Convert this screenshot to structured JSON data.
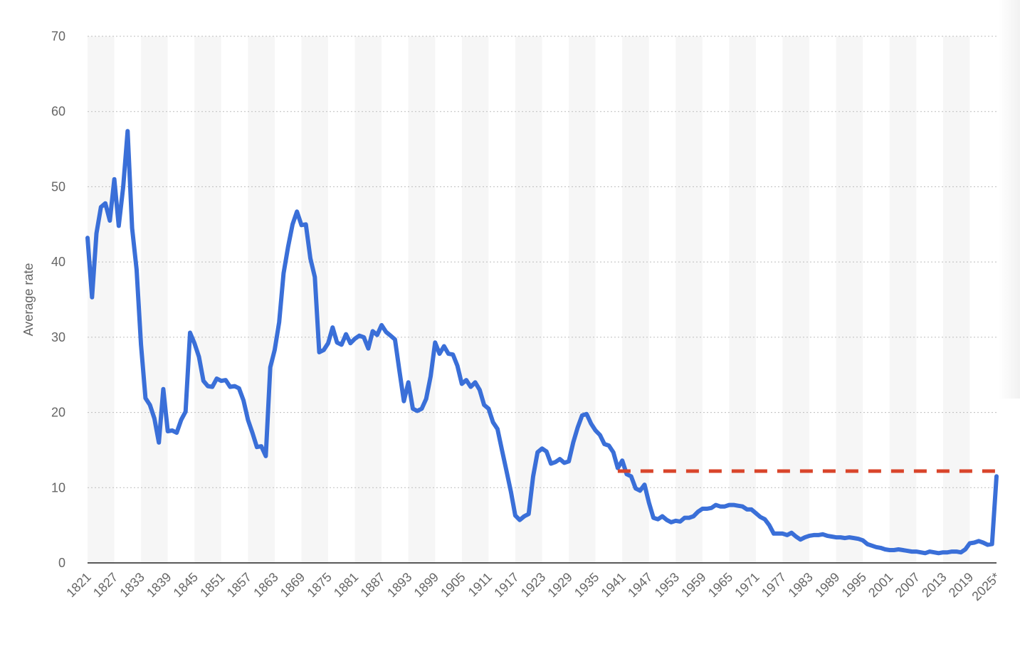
{
  "chart_data": {
    "type": "line",
    "title": "",
    "xlabel": "",
    "ylabel": "Average rate",
    "ylim": [
      0,
      70
    ],
    "yticks": [
      0,
      10,
      20,
      30,
      40,
      50,
      60,
      70
    ],
    "xlim": [
      1821,
      2025
    ],
    "xticks": [
      "1821",
      "1827",
      "1833",
      "1839",
      "1845",
      "1851",
      "1857",
      "1863",
      "1869",
      "1875",
      "1881",
      "1887",
      "1893",
      "1899",
      "1905",
      "1911",
      "1917",
      "1923",
      "1929",
      "1935",
      "1941",
      "1947",
      "1953",
      "1959",
      "1965",
      "1971",
      "1977",
      "1983",
      "1989",
      "1995",
      "2001",
      "2007",
      "2013",
      "2019",
      "2025*"
    ],
    "grid": true,
    "series": [
      {
        "color": "#3a6fd8",
        "x": [
          1821,
          1822,
          1823,
          1824,
          1825,
          1826,
          1827,
          1828,
          1829,
          1830,
          1831,
          1832,
          1833,
          1834,
          1835,
          1836,
          1837,
          1838,
          1839,
          1840,
          1841,
          1842,
          1843,
          1844,
          1845,
          1846,
          1847,
          1848,
          1849,
          1850,
          1851,
          1852,
          1853,
          1854,
          1855,
          1856,
          1857,
          1858,
          1859,
          1860,
          1861,
          1862,
          1863,
          1864,
          1865,
          1866,
          1867,
          1868,
          1869,
          1870,
          1871,
          1872,
          1873,
          1874,
          1875,
          1876,
          1877,
          1878,
          1879,
          1880,
          1881,
          1882,
          1883,
          1884,
          1885,
          1886,
          1887,
          1888,
          1889,
          1890,
          1891,
          1892,
          1893,
          1894,
          1895,
          1896,
          1897,
          1898,
          1899,
          1900,
          1901,
          1902,
          1903,
          1904,
          1905,
          1906,
          1907,
          1908,
          1909,
          1910,
          1911,
          1912,
          1913,
          1914,
          1915,
          1916,
          1917,
          1918,
          1919,
          1920,
          1921,
          1922,
          1923,
          1924,
          1925,
          1926,
          1927,
          1928,
          1929,
          1930,
          1931,
          1932,
          1933,
          1934,
          1935,
          1936,
          1937,
          1938,
          1939,
          1940,
          1941,
          1942,
          1943,
          1944,
          1945,
          1946,
          1947,
          1948,
          1949,
          1950,
          1951,
          1952,
          1953,
          1954,
          1955,
          1956,
          1957,
          1958,
          1959,
          1960,
          1961,
          1962,
          1963,
          1964,
          1965,
          1966,
          1967,
          1968,
          1969,
          1970,
          1971,
          1972,
          1973,
          1974,
          1975,
          1976,
          1977,
          1978,
          1979,
          1980,
          1981,
          1982,
          1983,
          1984,
          1985,
          1986,
          1987,
          1988,
          1989,
          1990,
          1991,
          1992,
          1993,
          1994,
          1995,
          1996,
          1997,
          1998,
          1999,
          2000,
          2001,
          2002,
          2003,
          2004,
          2005,
          2006,
          2007,
          2008,
          2009,
          2010,
          2011,
          2012,
          2013,
          2014,
          2015,
          2016,
          2017,
          2018,
          2019,
          2020,
          2021,
          2022,
          2023,
          2024,
          2025
        ],
        "values": [
          43.2,
          35.3,
          43.8,
          47.3,
          47.8,
          45.5,
          51.0,
          44.8,
          50.0,
          57.4,
          44.5,
          39.0,
          29.0,
          21.9,
          21.0,
          19.2,
          16.0,
          23.1,
          17.5,
          17.6,
          17.3,
          19.0,
          20.1,
          30.6,
          29.2,
          27.4,
          24.2,
          23.5,
          23.4,
          24.5,
          24.2,
          24.3,
          23.4,
          23.5,
          23.2,
          21.6,
          19.0,
          17.3,
          15.4,
          15.5,
          14.2,
          26.0,
          28.3,
          32.0,
          38.5,
          42.0,
          45.0,
          46.7,
          44.9,
          45.0,
          40.5,
          38.0,
          28.0,
          28.3,
          29.2,
          31.3,
          29.3,
          29.0,
          30.4,
          29.2,
          29.8,
          30.2,
          30.0,
          28.5,
          30.8,
          30.3,
          31.6,
          30.7,
          30.2,
          29.7,
          25.5,
          21.5,
          24.0,
          20.5,
          20.2,
          20.5,
          21.8,
          24.8,
          29.3,
          27.8,
          28.8,
          27.8,
          27.7,
          26.2,
          23.8,
          24.3,
          23.4,
          24.0,
          23.0,
          21.0,
          20.5,
          18.7,
          17.8,
          15.0,
          12.3,
          9.5,
          6.3,
          5.7,
          6.2,
          6.5,
          11.5,
          14.7,
          15.2,
          14.8,
          13.2,
          13.4,
          13.8,
          13.3,
          13.5,
          16.0,
          18.0,
          19.6,
          19.8,
          18.5,
          17.6,
          17.0,
          15.8,
          15.6,
          14.7,
          12.6,
          13.6,
          11.8,
          11.5,
          9.9,
          9.6,
          10.4,
          8.0,
          6.0,
          5.8,
          6.2,
          5.7,
          5.4,
          5.6,
          5.5,
          6.0,
          6.0,
          6.2,
          6.8,
          7.2,
          7.2,
          7.3,
          7.7,
          7.5,
          7.5,
          7.7,
          7.7,
          7.6,
          7.5,
          7.1,
          7.1,
          6.6,
          6.1,
          5.8,
          5.0,
          3.9,
          3.9,
          3.9,
          3.7,
          4.0,
          3.5,
          3.1,
          3.4,
          3.6,
          3.7,
          3.7,
          3.8,
          3.6,
          3.5,
          3.4,
          3.4,
          3.3,
          3.4,
          3.3,
          3.2,
          3.0,
          2.5,
          2.3,
          2.1,
          2.0,
          1.8,
          1.7,
          1.7,
          1.8,
          1.7,
          1.6,
          1.5,
          1.5,
          1.4,
          1.3,
          1.5,
          1.4,
          1.3,
          1.4,
          1.4,
          1.5,
          1.5,
          1.4,
          1.8,
          2.6,
          2.7,
          2.9,
          2.7,
          2.4,
          2.5,
          11.5
        ]
      },
      {
        "color": "#d9452b",
        "style": "dashed",
        "x": [
          1940,
          2025
        ],
        "values": [
          12.2,
          12.2
        ]
      }
    ]
  }
}
